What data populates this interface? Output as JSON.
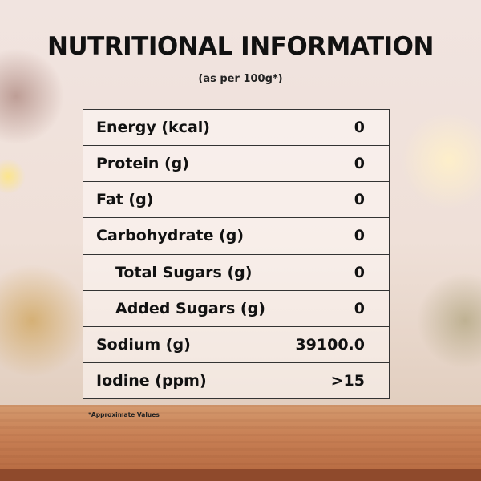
{
  "title": "NUTRITIONAL INFORMATION",
  "subtitle": "(as per 100g*)",
  "rows": [
    {
      "label": "Energy (kcal)",
      "value": "0"
    },
    {
      "label": "Protein (g)",
      "value": "0"
    },
    {
      "label": "Fat (g)",
      "value": "0"
    },
    {
      "label": "Carbohydrate (g)",
      "value": "0"
    },
    {
      "label": "Total Sugars (g)",
      "value": "0"
    },
    {
      "label": "Added Sugars (g)",
      "value": "0"
    },
    {
      "label": "Sodium (g)",
      "value": "39100.0"
    },
    {
      "label": "Iodine (ppm)",
      "value": ">15"
    }
  ],
  "footnote": "*Approximate Values"
}
